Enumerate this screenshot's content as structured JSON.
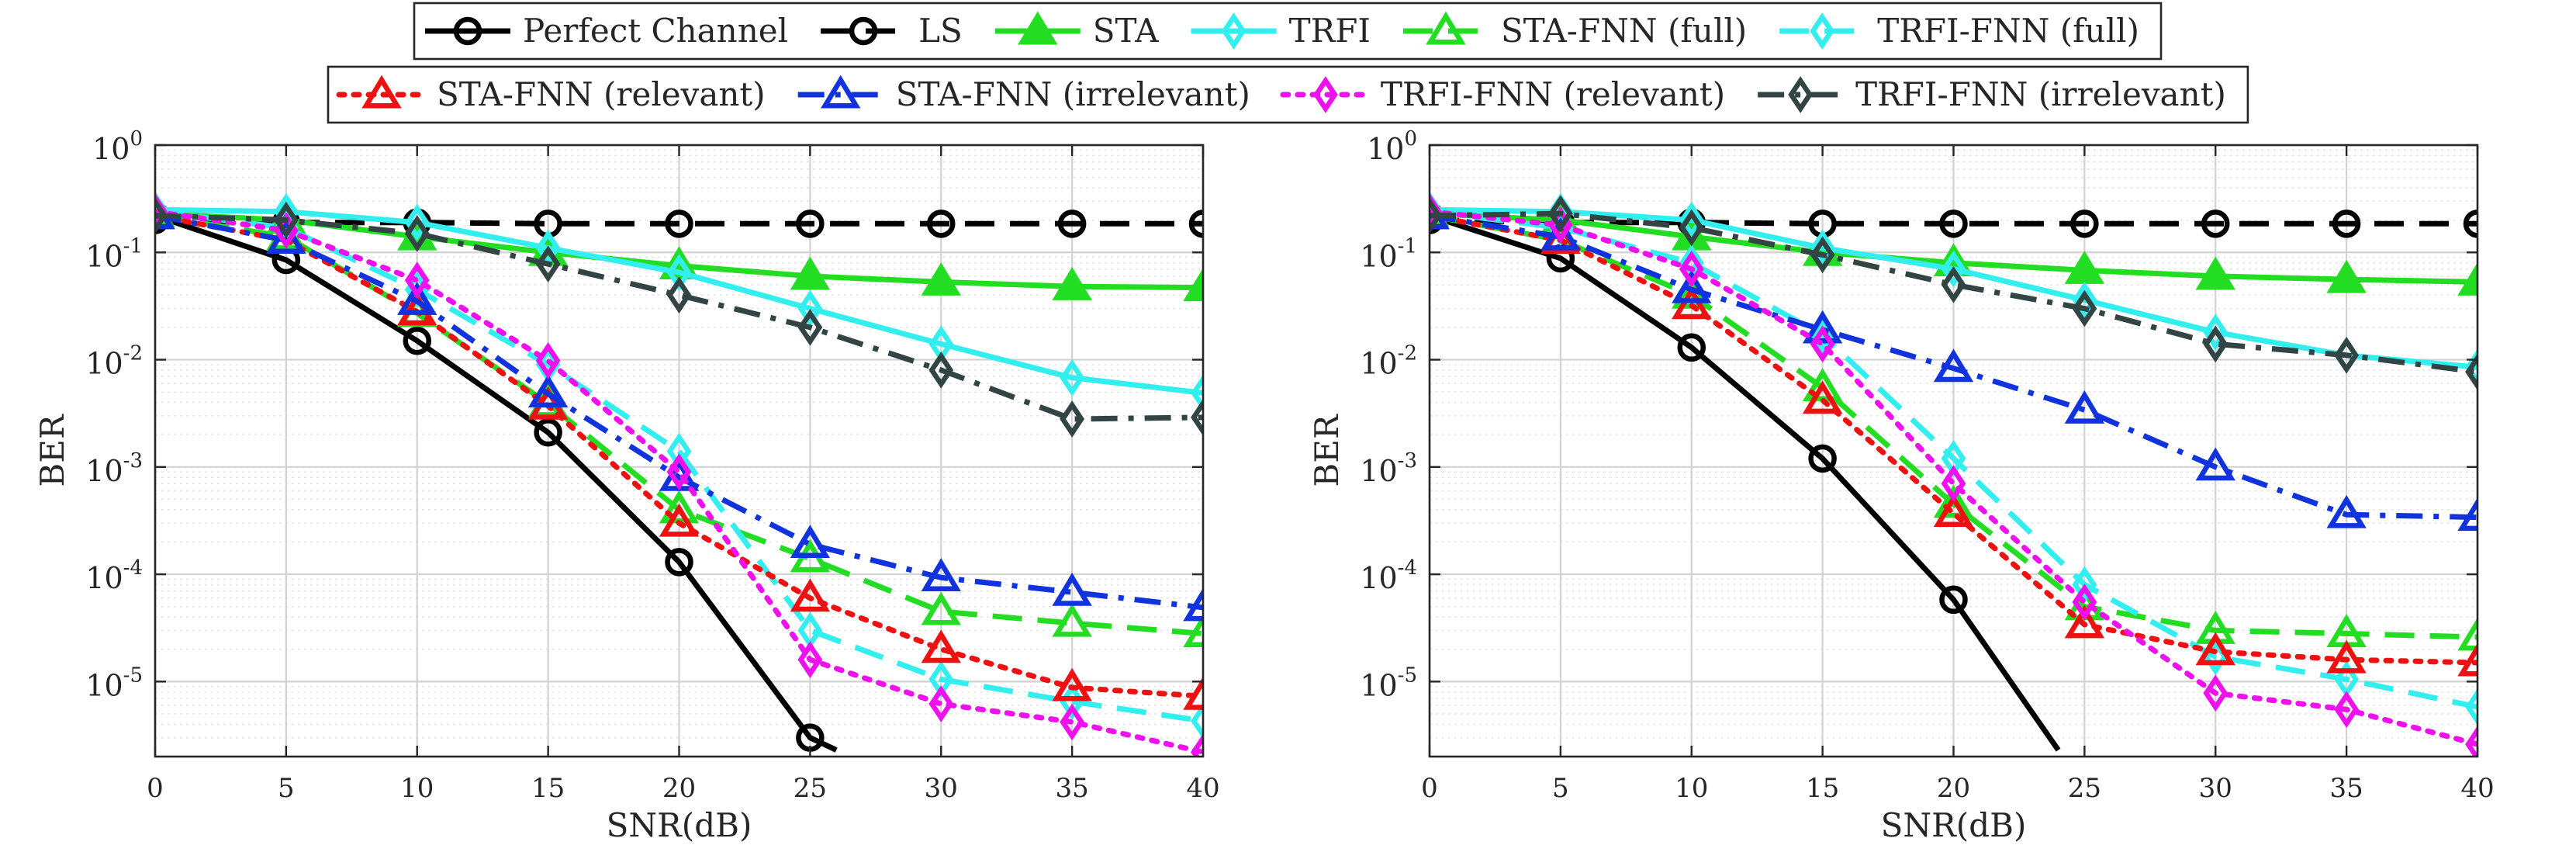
{
  "legend": {
    "rows": [
      [
        "perfect",
        "ls",
        "sta",
        "trfi",
        "sta_fnn_full",
        "trfi_fnn_full"
      ],
      [
        "sta_fnn_rel",
        "sta_fnn_irr",
        "trfi_fnn_rel",
        "trfi_fnn_irr"
      ]
    ]
  },
  "series_styles": {
    "perfect": {
      "label": "Perfect Channel",
      "color": "#000000",
      "dash": "solid",
      "marker": "circle"
    },
    "ls": {
      "label": "LS",
      "color": "#000000",
      "dash": "dashed",
      "marker": "circle"
    },
    "sta": {
      "label": "STA",
      "color": "#22dd22",
      "dash": "solid",
      "marker": "triangle-filled"
    },
    "trfi": {
      "label": "TRFI",
      "color": "#33eeee",
      "dash": "solid",
      "marker": "diamond"
    },
    "sta_fnn_full": {
      "label": "STA-FNN (full)",
      "color": "#22dd22",
      "dash": "dashed",
      "marker": "triangle"
    },
    "trfi_fnn_full": {
      "label": "TRFI-FNN (full)",
      "color": "#33eeee",
      "dash": "dashed",
      "marker": "diamond"
    },
    "sta_fnn_rel": {
      "label": "STA-FNN (relevant)",
      "color": "#ee1111",
      "dash": "dotted",
      "marker": "triangle"
    },
    "sta_fnn_irr": {
      "label": "STA-FNN (irrelevant)",
      "color": "#1133dd",
      "dash": "dashdot",
      "marker": "triangle"
    },
    "trfi_fnn_rel": {
      "label": "TRFI-FNN (relevant)",
      "color": "#ee11ee",
      "dash": "dotted",
      "marker": "diamond"
    },
    "trfi_fnn_irr": {
      "label": "TRFI-FNN (irrelevant)",
      "color": "#334444",
      "dash": "dashdot",
      "marker": "diamond"
    }
  },
  "chart_data": [
    {
      "type": "line",
      "title": "",
      "xlabel": "SNR(dB)",
      "ylabel": "BER",
      "yscale": "log",
      "xlim": [
        0,
        40
      ],
      "ylim": [
        2e-06,
        1
      ],
      "grid": true,
      "x": [
        0,
        5,
        10,
        15,
        20,
        25,
        30,
        35,
        40
      ],
      "xticks": [
        "0",
        "5",
        "10",
        "15",
        "20",
        "25",
        "30",
        "35",
        "40"
      ],
      "yticks": [
        {
          "base": "10",
          "exp": "0"
        },
        {
          "base": "10",
          "exp": "-1"
        },
        {
          "base": "10",
          "exp": "-2"
        },
        {
          "base": "10",
          "exp": "-3"
        },
        {
          "base": "10",
          "exp": "-4"
        },
        {
          "base": "10",
          "exp": "-5"
        }
      ],
      "series": [
        {
          "key": "perfect",
          "values": [
            0.22,
            0.085,
            0.015,
            0.0021,
            0.00013,
            3e-06,
            null,
            null,
            null
          ],
          "tail": [
            26,
            2.3e-06
          ]
        },
        {
          "key": "ls",
          "values": [
            0.2,
            0.19,
            0.19,
            0.185,
            0.185,
            0.185,
            0.185,
            0.185,
            0.185
          ]
        },
        {
          "key": "sta",
          "values": [
            0.23,
            0.2,
            0.14,
            0.1,
            0.075,
            0.06,
            0.053,
            0.048,
            0.047
          ]
        },
        {
          "key": "trfi",
          "values": [
            0.25,
            0.24,
            0.19,
            0.11,
            0.065,
            0.03,
            0.014,
            0.0068,
            0.0049
          ]
        },
        {
          "key": "sta_fnn_full",
          "values": [
            0.22,
            0.14,
            0.027,
            0.0039,
            0.0004,
            0.00014,
            4.5e-05,
            3.5e-05,
            2.8e-05
          ]
        },
        {
          "key": "trfi_fnn_full",
          "values": [
            0.24,
            0.17,
            0.045,
            0.009,
            0.0014,
            3e-05,
            1.05e-05,
            6.5e-06,
            4.3e-06
          ]
        },
        {
          "key": "sta_fnn_rel",
          "values": [
            0.22,
            0.13,
            0.028,
            0.0037,
            0.0003,
            6e-05,
            2e-05,
            8.8e-06,
            7.3e-06
          ]
        },
        {
          "key": "sta_fnn_irr",
          "values": [
            0.22,
            0.13,
            0.035,
            0.0048,
            0.0008,
            0.00019,
            9.3e-05,
            6.8e-05,
            4.9e-05
          ]
        },
        {
          "key": "trfi_fnn_rel",
          "values": [
            0.24,
            0.16,
            0.055,
            0.0098,
            0.0009,
            1.6e-05,
            6.2e-06,
            4.2e-06,
            2.2e-06
          ]
        },
        {
          "key": "trfi_fnn_irr",
          "values": [
            0.22,
            0.2,
            0.15,
            0.078,
            0.04,
            0.02,
            0.008,
            0.0028,
            0.0029
          ]
        }
      ]
    },
    {
      "type": "line",
      "title": "",
      "xlabel": "SNR(dB)",
      "ylabel": "BER",
      "yscale": "log",
      "xlim": [
        0,
        40
      ],
      "ylim": [
        2e-06,
        1
      ],
      "grid": true,
      "x": [
        0,
        5,
        10,
        15,
        20,
        25,
        30,
        35,
        40
      ],
      "xticks": [
        "0",
        "5",
        "10",
        "15",
        "20",
        "25",
        "30",
        "35",
        "40"
      ],
      "yticks": [
        {
          "base": "10",
          "exp": "0"
        },
        {
          "base": "10",
          "exp": "-1"
        },
        {
          "base": "10",
          "exp": "-2"
        },
        {
          "base": "10",
          "exp": "-3"
        },
        {
          "base": "10",
          "exp": "-4"
        },
        {
          "base": "10",
          "exp": "-5"
        }
      ],
      "series": [
        {
          "key": "perfect",
          "values": [
            0.22,
            0.088,
            0.013,
            0.0012,
            5.8e-05,
            null,
            null,
            null,
            null
          ],
          "tail": [
            24,
            2.3e-06
          ]
        },
        {
          "key": "ls",
          "values": [
            0.2,
            0.19,
            0.19,
            0.185,
            0.185,
            0.185,
            0.185,
            0.185,
            0.185
          ]
        },
        {
          "key": "sta",
          "values": [
            0.23,
            0.2,
            0.14,
            0.1,
            0.08,
            0.068,
            0.06,
            0.056,
            0.053
          ]
        },
        {
          "key": "trfi",
          "values": [
            0.25,
            0.24,
            0.2,
            0.11,
            0.07,
            0.036,
            0.018,
            0.011,
            0.0085
          ]
        },
        {
          "key": "sta_fnn_full",
          "values": [
            0.22,
            0.13,
            0.04,
            0.0055,
            0.00045,
            5e-05,
            3e-05,
            2.8e-05,
            2.6e-05
          ]
        },
        {
          "key": "trfi_fnn_full",
          "values": [
            0.24,
            0.17,
            0.08,
            0.017,
            0.0012,
            8e-05,
            1.7e-05,
            1.05e-05,
            5.8e-06
          ]
        },
        {
          "key": "sta_fnn_rel",
          "values": [
            0.22,
            0.13,
            0.032,
            0.0042,
            0.00037,
            3.4e-05,
            1.9e-05,
            1.6e-05,
            1.5e-05
          ]
        },
        {
          "key": "sta_fnn_irr",
          "values": [
            0.22,
            0.14,
            0.045,
            0.019,
            0.0083,
            0.0034,
            0.001,
            0.00036,
            0.00034
          ]
        },
        {
          "key": "trfi_fnn_rel",
          "values": [
            0.24,
            0.18,
            0.07,
            0.014,
            0.0007,
            5.5e-05,
            7.8e-06,
            5.5e-06,
            2.6e-06
          ]
        },
        {
          "key": "trfi_fnn_irr",
          "values": [
            0.22,
            0.23,
            0.17,
            0.095,
            0.05,
            0.03,
            0.014,
            0.011,
            0.0077
          ]
        }
      ]
    }
  ]
}
